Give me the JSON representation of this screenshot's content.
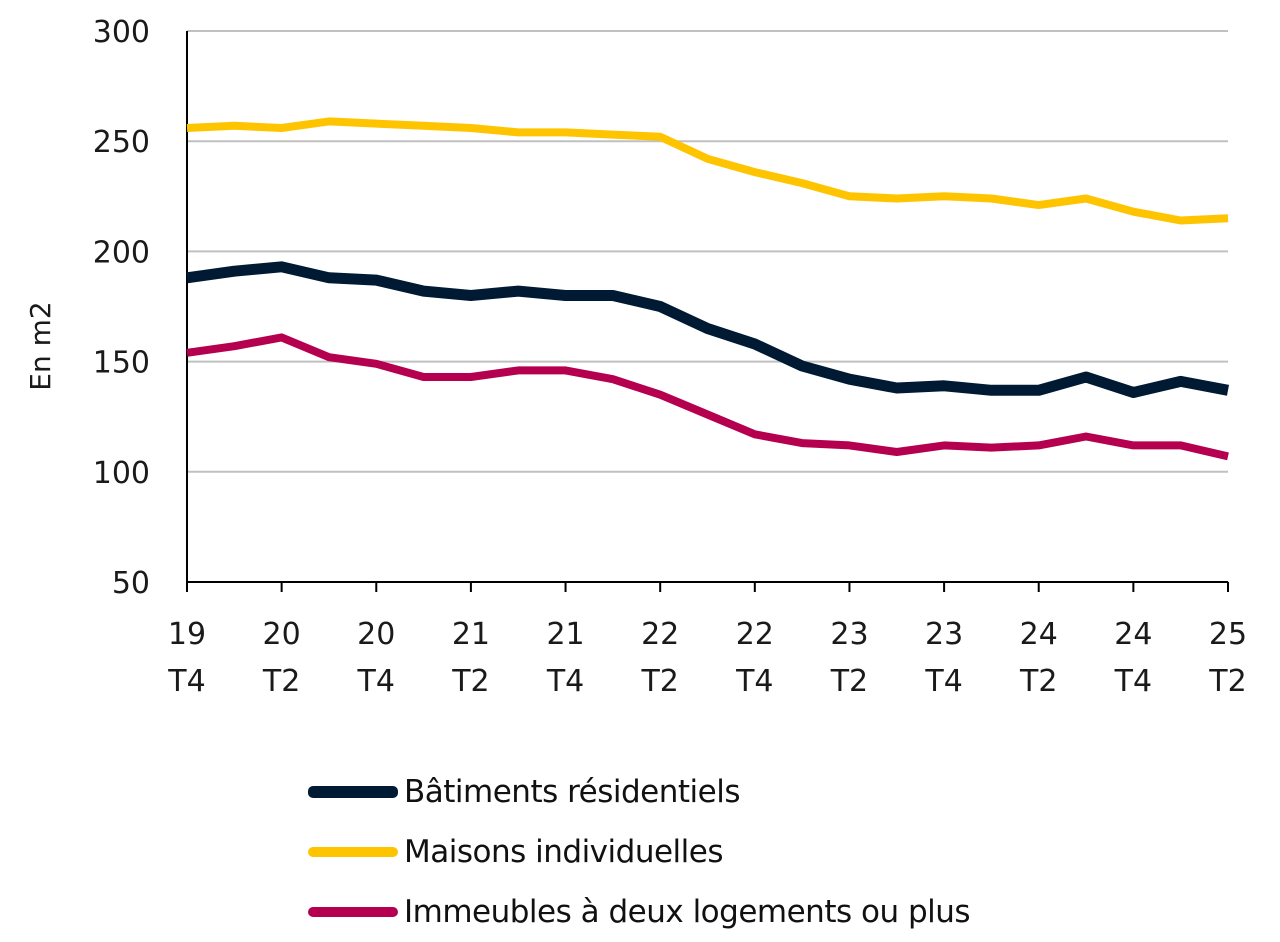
{
  "chart_data": {
    "type": "line",
    "title": "",
    "xlabel": "",
    "ylabel": "En m2",
    "ylim": [
      50,
      300
    ],
    "yticks": [
      50,
      100,
      150,
      200,
      250,
      300
    ],
    "grid": true,
    "legend_position": "bottom",
    "x": [
      "19 T4",
      "20 T1",
      "20 T2",
      "20 T3",
      "20 T4",
      "21 T1",
      "21 T2",
      "21 T3",
      "21 T4",
      "22 T1",
      "22 T2",
      "22 T3",
      "22 T4",
      "23 T1",
      "23 T2",
      "23 T3",
      "23 T4",
      "24 T1",
      "24 T2",
      "24 T3",
      "24 T4",
      "25 T1",
      "25 T2"
    ],
    "xtick_labels": [
      {
        "year": "19",
        "quarter": "T4"
      },
      {
        "year": "20",
        "quarter": "T2"
      },
      {
        "year": "20",
        "quarter": "T4"
      },
      {
        "year": "21",
        "quarter": "T2"
      },
      {
        "year": "21",
        "quarter": "T4"
      },
      {
        "year": "22",
        "quarter": "T2"
      },
      {
        "year": "22",
        "quarter": "T4"
      },
      {
        "year": "23",
        "quarter": "T2"
      },
      {
        "year": "23",
        "quarter": "T4"
      },
      {
        "year": "24",
        "quarter": "T2"
      },
      {
        "year": "24",
        "quarter": "T4"
      },
      {
        "year": "25",
        "quarter": "T2"
      }
    ],
    "series": [
      {
        "name": "Bâtiments résidentiels",
        "color": "#001a33",
        "values": [
          188,
          191,
          193,
          188,
          187,
          182,
          180,
          182,
          180,
          180,
          175,
          165,
          158,
          148,
          142,
          138,
          139,
          137,
          137,
          143,
          136,
          141,
          137
        ]
      },
      {
        "name": "Maisons individuelles",
        "color": "#ffc400",
        "values": [
          256,
          257,
          256,
          259,
          258,
          257,
          256,
          254,
          254,
          253,
          252,
          242,
          236,
          231,
          225,
          224,
          225,
          224,
          221,
          224,
          218,
          214,
          215
        ]
      },
      {
        "name": "Immeubles à deux logements ou plus",
        "color": "#b5004f",
        "values": [
          154,
          157,
          161,
          152,
          149,
          143,
          143,
          146,
          146,
          142,
          135,
          126,
          117,
          113,
          112,
          109,
          112,
          111,
          112,
          116,
          112,
          112,
          107
        ]
      }
    ]
  }
}
